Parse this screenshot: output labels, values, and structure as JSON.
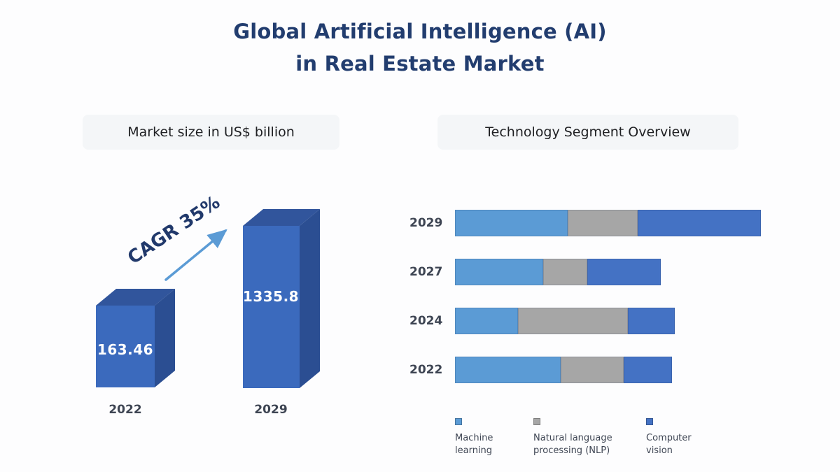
{
  "title": {
    "line1": "Global Artificial Intelligence (AI)",
    "line2": "in Real Estate Market",
    "color": "#223D6F"
  },
  "panels": {
    "left_header": "Market size in US$ billion",
    "right_header": "Technology Segment Overview"
  },
  "theme": {
    "page_background": "#FDFDFE",
    "header_pill_bg": "#F4F6F8",
    "header_pill_text": "#202124",
    "label_color": "#3E4553"
  },
  "chart_data": [
    {
      "type": "bar",
      "variant": "3d-column",
      "title": "Market size in US$ billion",
      "unit": "US$ billion",
      "categories": [
        "2022",
        "2029"
      ],
      "values": [
        163.46,
        1335.8
      ],
      "annotation": "CAGR 35%",
      "grid": false,
      "colors": {
        "front": "#3B6ABD",
        "top": "#31559C",
        "side": "#2B4E92",
        "arrow": "#5B9BD5",
        "annotation_text": "#21396B",
        "value_text": "#FFFFFF"
      }
    },
    {
      "type": "bar",
      "variant": "horizontal-stacked",
      "title": "Technology Segment Overview",
      "categories": [
        "2029",
        "2027",
        "2024",
        "2022"
      ],
      "series": [
        {
          "name": "Machine learning",
          "color": "#5B9BD5",
          "values": [
            161,
            126,
            90,
            151
          ]
        },
        {
          "name": "Natural language processing (NLP)",
          "color": "#A6A6A6",
          "values": [
            100,
            63,
            157,
            90
          ]
        },
        {
          "name": "Computer vision",
          "color": "#4472C4",
          "values": [
            176,
            105,
            67,
            69
          ]
        }
      ],
      "value_note": "segment lengths are relative display units; the figure shows no numeric axis",
      "grid": false,
      "legend_position": "bottom"
    }
  ]
}
